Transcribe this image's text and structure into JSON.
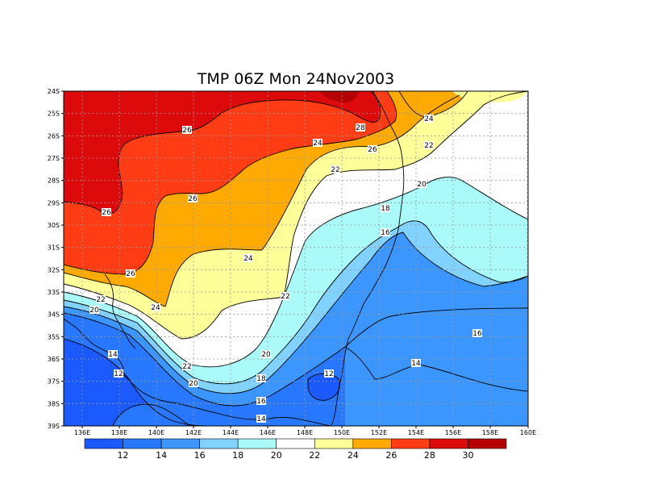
{
  "title": "TMP 06Z Mon 24Nov2003",
  "x_ticks": [
    "136E",
    "138E",
    "140E",
    "142E",
    "144E",
    "146E",
    "148E",
    "150E",
    "152E",
    "154E",
    "156E",
    "158E",
    "160E"
  ],
  "y_ticks": [
    "24S",
    "25S",
    "26S",
    "27S",
    "28S",
    "29S",
    "30S",
    "31S",
    "32S",
    "33S",
    "34S",
    "35S",
    "36S",
    "37S",
    "38S",
    "39S"
  ],
  "colorbar": {
    "colors": [
      "#1a5aff",
      "#2878ff",
      "#3c96ff",
      "#82d2ff",
      "#aafafa",
      "#ffffff",
      "#ffff9a",
      "#ffaa00",
      "#ff3c14",
      "#dc0a0a",
      "#b40000"
    ],
    "labels": [
      "12",
      "14",
      "16",
      "18",
      "20",
      "22",
      "24",
      "26",
      "28",
      "30"
    ]
  },
  "contour_labels": [
    {
      "text": "26"
    },
    {
      "text": "26"
    },
    {
      "text": "26"
    },
    {
      "text": "26"
    },
    {
      "text": "28"
    },
    {
      "text": "26"
    },
    {
      "text": "24"
    },
    {
      "text": "24"
    },
    {
      "text": "22"
    },
    {
      "text": "20"
    },
    {
      "text": "18"
    },
    {
      "text": "16"
    },
    {
      "text": "24"
    },
    {
      "text": "22"
    },
    {
      "text": "22"
    },
    {
      "text": "20"
    },
    {
      "text": "24"
    },
    {
      "text": "22"
    },
    {
      "text": "20"
    },
    {
      "text": "14"
    },
    {
      "text": "12"
    },
    {
      "text": "22"
    },
    {
      "text": "20"
    },
    {
      "text": "18"
    },
    {
      "text": "16"
    },
    {
      "text": "14"
    },
    {
      "text": "12"
    },
    {
      "text": "14"
    },
    {
      "text": "16"
    }
  ]
}
